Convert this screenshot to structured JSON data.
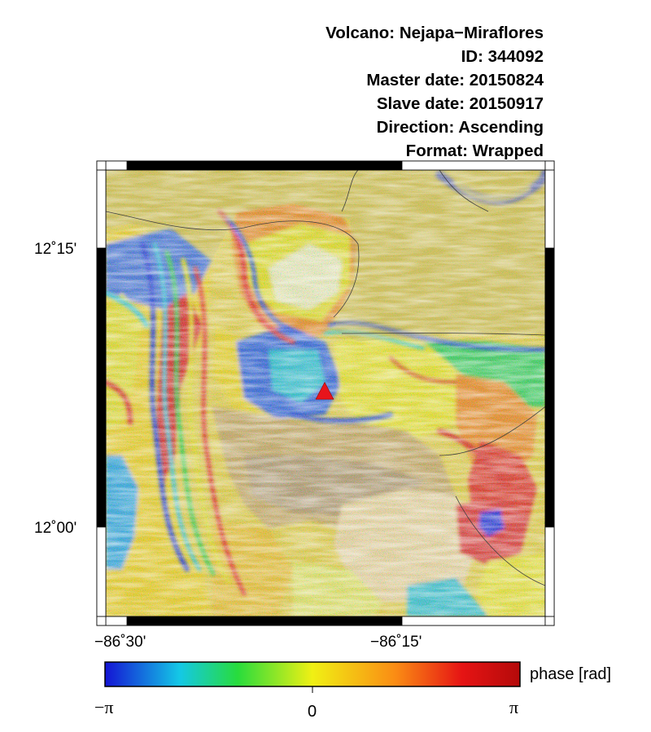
{
  "header": {
    "volcano": "Volcano: Nejapa−Miraflores",
    "id": "ID: 344092",
    "master_date": "Master date: 20150824",
    "slave_date": "Slave date: 20150917",
    "direction": "Direction: Ascending",
    "format": "Format: Wrapped"
  },
  "map": {
    "lat_ticks": [
      "12˚15'",
      "12˚00'"
    ],
    "lon_ticks": [
      "−86˚30'",
      "−86˚15'"
    ],
    "volcano_marker": {
      "shape": "triangle",
      "color": "#e8141b"
    }
  },
  "colorbar": {
    "label": "phase [rad]",
    "min_label": "−π",
    "mid_label": "0",
    "max_label": "π",
    "colors": [
      "#1414d4",
      "#14c8e6",
      "#28dc3c",
      "#f0f014",
      "#fa8c14",
      "#e61414",
      "#b40a0a"
    ]
  }
}
